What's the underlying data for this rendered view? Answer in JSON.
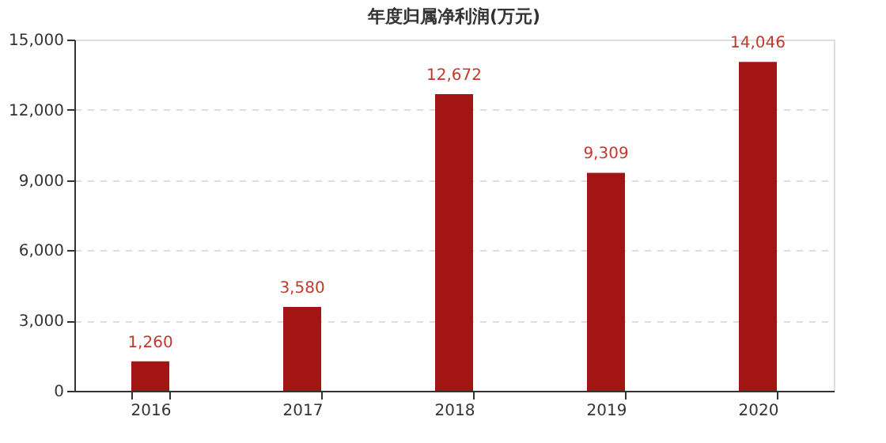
{
  "chart_data": {
    "type": "bar",
    "title": "年度归属净利润(万元)",
    "categories": [
      "2016",
      "2017",
      "2018",
      "2019",
      "2020"
    ],
    "values": [
      1260,
      3580,
      12672,
      9309,
      14046
    ],
    "color": "#a31515",
    "value_labels": [
      "1,260",
      "3,580",
      "12,672",
      "9,309",
      "14,046"
    ],
    "ylim": [
      0,
      15000
    ],
    "yticks": [
      0,
      {
        "value": 3000,
        "label": "3,000"
      },
      {
        "value": 6000,
        "label": "6,000"
      },
      {
        "value": 9000,
        "label": "9,000"
      },
      {
        "value": 12000,
        "label": "12,000"
      },
      {
        "value": 15000,
        "label": "15,000"
      }
    ],
    "grid": "y"
  }
}
